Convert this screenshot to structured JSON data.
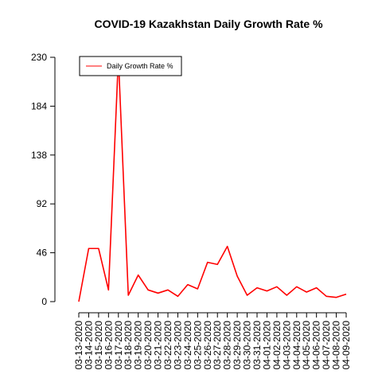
{
  "chart_data": {
    "type": "line",
    "title": "COVID-19 Kazakhstan Daily Growth Rate %",
    "xlabel": "",
    "ylabel": "",
    "ylim": [
      0,
      230
    ],
    "y_ticks": [
      0,
      46,
      92,
      138,
      184,
      230
    ],
    "y_tick_labels": [
      "0",
      "46",
      "92",
      "138",
      "184",
      "230"
    ],
    "grid": false,
    "legend_position": "top-left",
    "categories": [
      "03-13-2020",
      "03-14-2020",
      "03-15-2020",
      "03-16-2020",
      "03-17-2020",
      "03-18-2020",
      "03-19-2020",
      "03-20-2020",
      "03-21-2020",
      "03-22-2020",
      "03-23-2020",
      "03-24-2020",
      "03-25-2020",
      "03-26-2020",
      "03-27-2020",
      "03-28-2020",
      "03-29-2020",
      "03-30-2020",
      "03-31-2020",
      "04-01-2020",
      "04-02-2020",
      "04-03-2020",
      "04-04-2020",
      "04-05-2020",
      "04-06-2020",
      "04-07-2020",
      "04-08-2020",
      "04-09-2020"
    ],
    "series": [
      {
        "name": "Daily Growth Rate %",
        "color": "#ff0000",
        "values": [
          0,
          50,
          50,
          11,
          230,
          6,
          25,
          11,
          8,
          11,
          5,
          16,
          12,
          37,
          35,
          52,
          24,
          6,
          13,
          10,
          14,
          6,
          14,
          9,
          13,
          5,
          4,
          7
        ]
      }
    ]
  }
}
